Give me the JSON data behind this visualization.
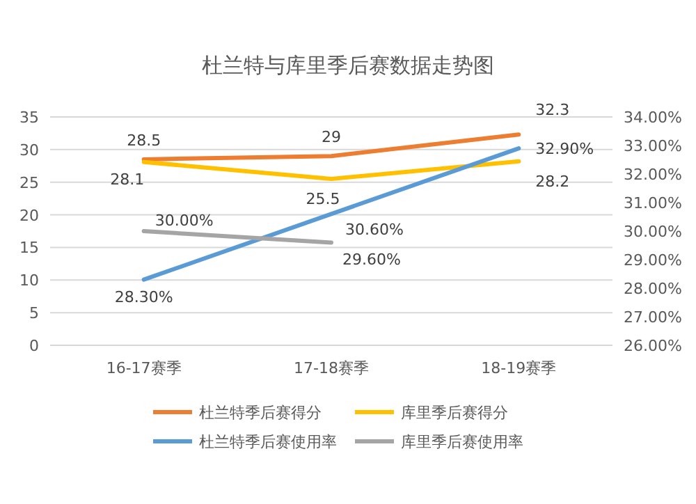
{
  "chart_data": {
    "type": "line",
    "title": "杜兰特与库里季后赛数据走势图",
    "categories": [
      "16-17赛季",
      "17-18赛季",
      "18-19赛季"
    ],
    "series": [
      {
        "name": "杜兰特季后赛得分",
        "color": "#ed7d31",
        "values": [
          28.5,
          29,
          32.3
        ],
        "value_labels": [
          "28.5",
          "29",
          "32.3"
        ]
      },
      {
        "name": "库里季后赛得分",
        "color": "#ffc000",
        "values": [
          28.1,
          25.5,
          28.2
        ],
        "value_labels": [
          "28.1",
          "25.5",
          "28.2"
        ]
      },
      {
        "name": "杜兰特季后赛使用率",
        "color": "#5b9bd5",
        "axis": "y2",
        "values": [
          28.3,
          30.6,
          32.9
        ],
        "value_labels": [
          "28.30%",
          "30.60%",
          "32.90%"
        ]
      },
      {
        "name": "库里季后赛使用率",
        "color": "#a5a5a5",
        "axis": "y2",
        "values": [
          30.0,
          29.6,
          null
        ],
        "value_labels": [
          "30.00%",
          "29.60%",
          null
        ]
      }
    ],
    "ylim": [
      0,
      35
    ],
    "yticks": [
      0,
      5,
      10,
      15,
      20,
      25,
      30,
      35
    ],
    "y2lim": [
      26,
      34
    ],
    "y2ticks": [
      {
        "value": 26,
        "label": "26.00%"
      },
      {
        "value": 27,
        "label": "27.00%"
      },
      {
        "value": 28,
        "label": "28.00%"
      },
      {
        "value": 29,
        "label": "29.00%"
      },
      {
        "value": 30,
        "label": "30.00%"
      },
      {
        "value": 31,
        "label": "31.00%"
      },
      {
        "value": 32,
        "label": "32.00%"
      },
      {
        "value": 33,
        "label": "33.00%"
      },
      {
        "value": 34,
        "label": "34.00%"
      }
    ],
    "grid": "y",
    "legend": "bottom",
    "marker": "none",
    "line_style": "solid"
  }
}
